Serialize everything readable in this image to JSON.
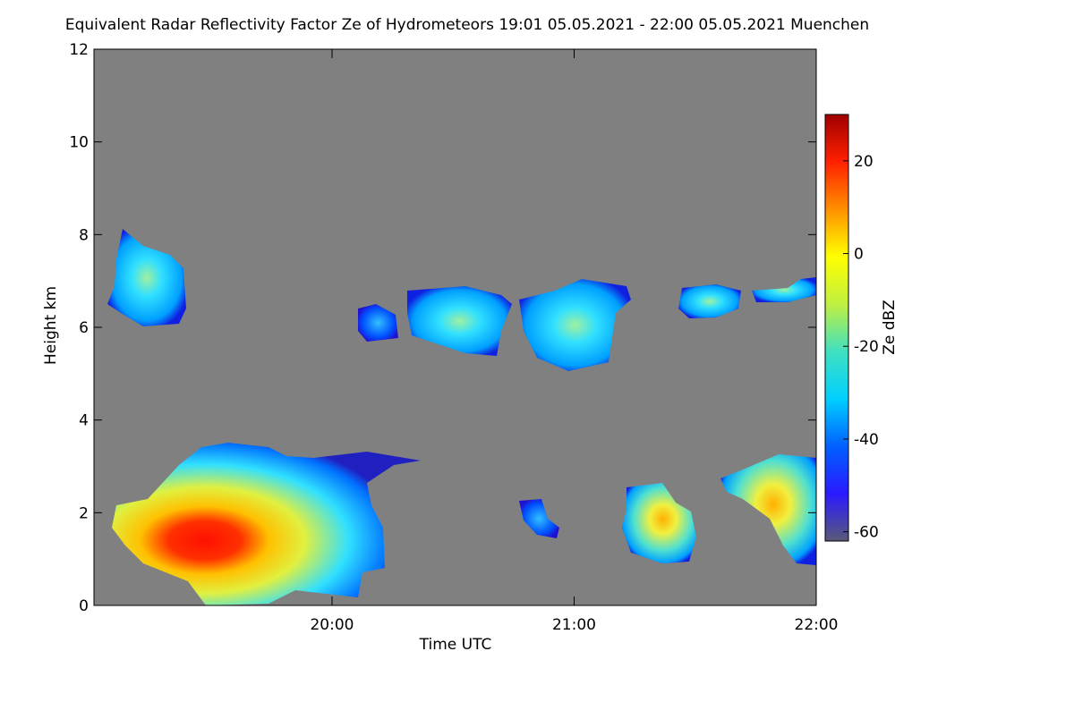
{
  "chart_data": {
    "type": "heatmap",
    "title": "Equivalent Radar Reflectivity Factor Ze of Hydrometeors   19:01 05.05.2021 - 22:00 05.05.2021 Muenchen",
    "x_label": "Time UTC",
    "y_label": "Height km",
    "xlim": [
      19.0167,
      22.0
    ],
    "xticks": [
      {
        "value": 20,
        "label": "20:00"
      },
      {
        "value": 21,
        "label": "21:00"
      },
      {
        "value": 22,
        "label": "22:00"
      }
    ],
    "ylim": [
      0,
      12
    ],
    "yticks": [
      0,
      2,
      4,
      6,
      8,
      10,
      12
    ],
    "colorbar_label": "Ze dBZ",
    "clim": [
      -62,
      30
    ],
    "cticks": [
      -60,
      -40,
      -20,
      0,
      20
    ],
    "colormap": [
      "#5a5a78",
      "#2a1aff",
      "#0060ff",
      "#00d0ff",
      "#40e0c0",
      "#c0f040",
      "#ffff00",
      "#ff9000",
      "#ff2000",
      "#a00000"
    ]
  }
}
